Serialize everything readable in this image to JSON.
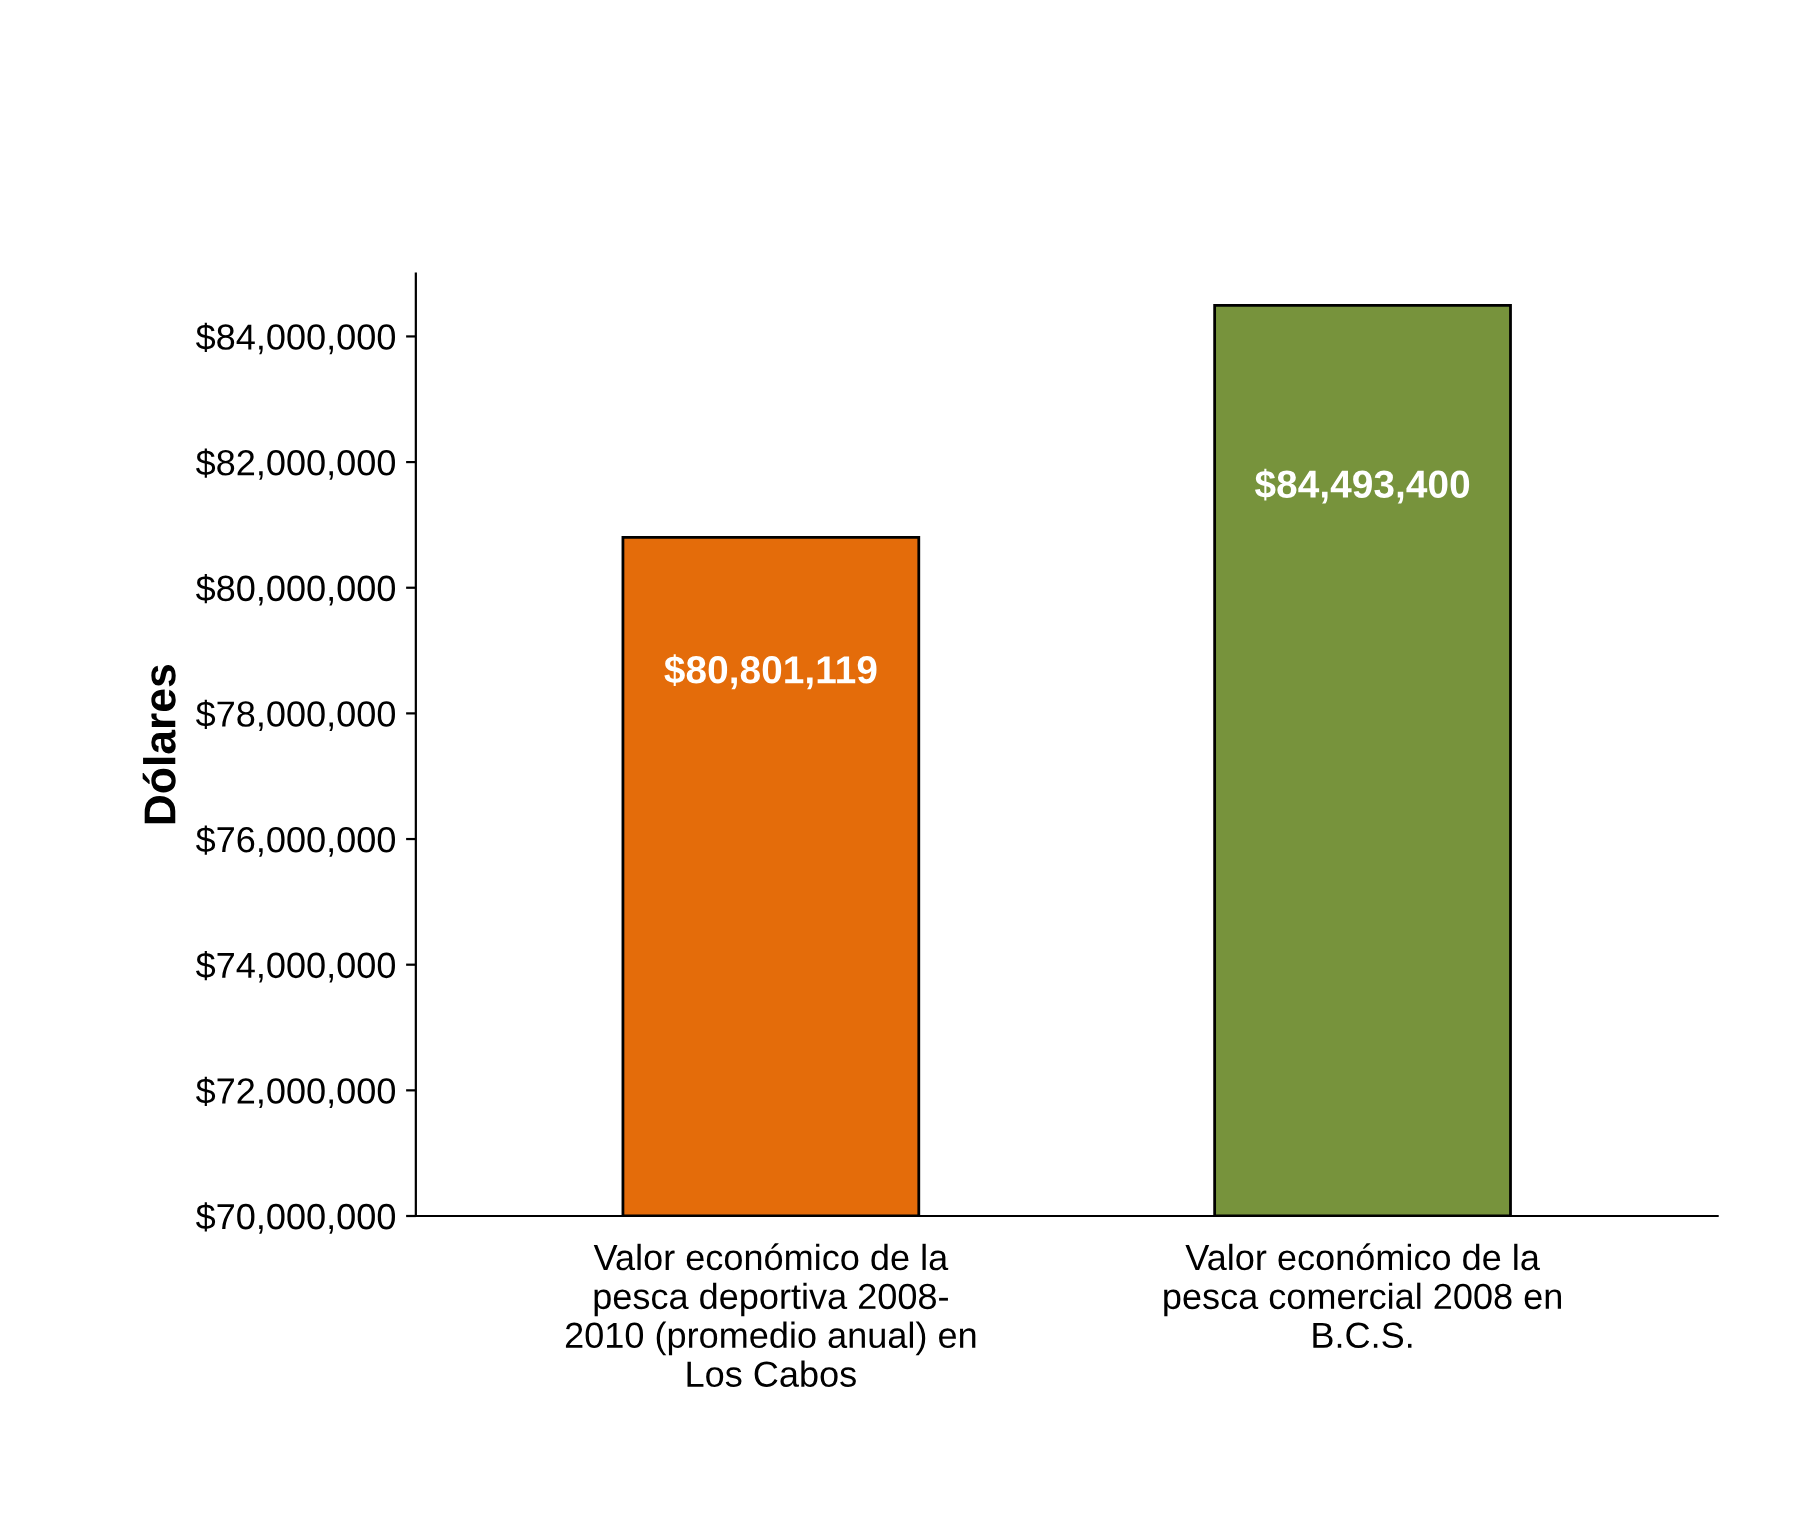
{
  "chart_data": {
    "type": "bar",
    "ylabel": "Dólares",
    "categories": [
      "Valor económico de la\npesca deportiva 2008-\n2010 (promedio anual) en\nLos Cabos",
      "Valor económico de la\npesca comercial 2008 en\nB.C.S."
    ],
    "values": [
      80801119,
      84493400
    ],
    "colors": [
      "#e46c0a",
      "#77933c"
    ],
    "value_labels": [
      "$80,801,119",
      "$84,493,400"
    ],
    "ylim": [
      70000000,
      85000000
    ],
    "yticks": [
      {
        "value": 70000000,
        "label": "$70,000,000"
      },
      {
        "value": 72000000,
        "label": "$72,000,000"
      },
      {
        "value": 74000000,
        "label": "$74,000,000"
      },
      {
        "value": 76000000,
        "label": "$76,000,000"
      },
      {
        "value": 78000000,
        "label": "$78,000,000"
      },
      {
        "value": 80000000,
        "label": "$80,000,000"
      },
      {
        "value": 82000000,
        "label": "$82,000,000"
      },
      {
        "value": 84000000,
        "label": "$84,000,000"
      }
    ],
    "grid": false
  }
}
